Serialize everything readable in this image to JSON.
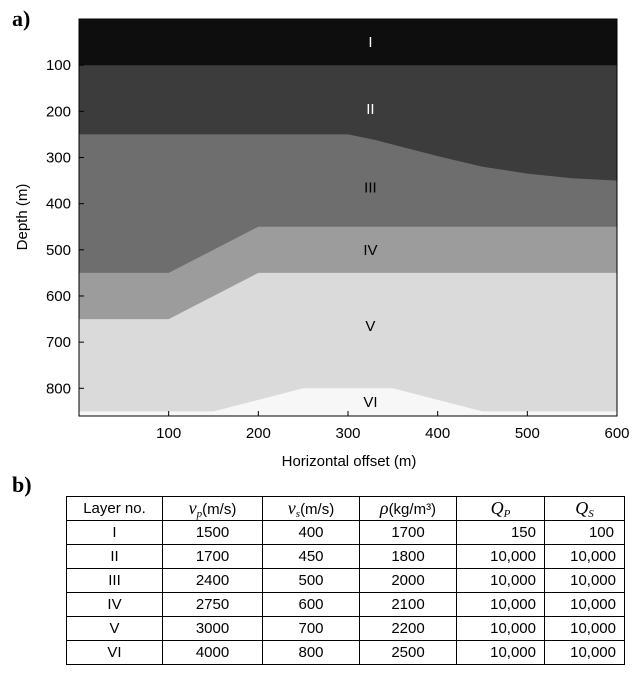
{
  "panel_a_label": "a)",
  "panel_b_label": "b)",
  "chart_data": {
    "type": "area",
    "xlabel": "Horizontal offset (m)",
    "ylabel": "Depth (m)",
    "xlim": [
      0,
      600
    ],
    "ylim": [
      860,
      0
    ],
    "y_inverted": true,
    "grid": false,
    "xticks": [
      "100",
      "200",
      "300",
      "400",
      "500",
      "600"
    ],
    "yticks": [
      "100",
      "200",
      "300",
      "400",
      "500",
      "600",
      "700",
      "800"
    ],
    "layers": [
      {
        "label": "I",
        "color": "#0e0e0e",
        "label_pos": [
          325,
          50
        ],
        "top": [
          [
            0,
            0
          ],
          [
            600,
            0
          ]
        ]
      },
      {
        "label": "II",
        "color": "#3c3c3c",
        "label_pos": [
          325,
          195
        ],
        "top": [
          [
            0,
            100
          ],
          [
            600,
            100
          ]
        ]
      },
      {
        "label": "III",
        "color": "#6e6e6e",
        "label_pos": [
          325,
          365
        ],
        "top": [
          [
            0,
            250
          ],
          [
            300,
            250
          ],
          [
            330,
            262
          ],
          [
            400,
            297
          ],
          [
            450,
            320
          ],
          [
            500,
            335
          ],
          [
            550,
            345
          ],
          [
            600,
            350
          ]
        ]
      },
      {
        "label": "IV",
        "color": "#9c9c9c",
        "label_pos": [
          325,
          500
        ],
        "top": [
          [
            0,
            550
          ],
          [
            100,
            550
          ],
          [
            200,
            450
          ],
          [
            600,
            450
          ]
        ]
      },
      {
        "label": "V",
        "color": "#dadada",
        "label_pos": [
          325,
          665
        ],
        "top": [
          [
            0,
            650
          ],
          [
            100,
            650
          ],
          [
            200,
            550
          ],
          [
            600,
            550
          ]
        ]
      },
      {
        "label": "VI",
        "color": "#f7f7f7",
        "label_pos": [
          325,
          830
        ],
        "top": [
          [
            0,
            850
          ],
          [
            150,
            850
          ],
          [
            250,
            800
          ],
          [
            350,
            800
          ],
          [
            450,
            850
          ],
          [
            600,
            850
          ]
        ]
      }
    ]
  },
  "table": {
    "headers": {
      "layer": "Layer no.",
      "vp_sym": "v",
      "vp_sub": "p",
      "vp_unit": "(m/s)",
      "vs_sym": "v",
      "vs_sub": "s",
      "vs_unit": "(m/s)",
      "rho_sym": "ρ",
      "rho_unit": "(kg/m³)",
      "qp_sym": "Q",
      "qp_sub": "P",
      "qs_sym": "Q",
      "qs_sub": "S"
    },
    "rows": [
      {
        "layer": "I",
        "vp": "1500",
        "vs": "400",
        "rho": "1700",
        "qp": "150",
        "qs": "100"
      },
      {
        "layer": "II",
        "vp": "1700",
        "vs": "450",
        "rho": "1800",
        "qp": "10,000",
        "qs": "10,000"
      },
      {
        "layer": "III",
        "vp": "2400",
        "vs": "500",
        "rho": "2000",
        "qp": "10,000",
        "qs": "10,000"
      },
      {
        "layer": "IV",
        "vp": "2750",
        "vs": "600",
        "rho": "2100",
        "qp": "10,000",
        "qs": "10,000"
      },
      {
        "layer": "V",
        "vp": "3000",
        "vs": "700",
        "rho": "2200",
        "qp": "10,000",
        "qs": "10,000"
      },
      {
        "layer": "VI",
        "vp": "4000",
        "vs": "800",
        "rho": "2500",
        "qp": "10,000",
        "qs": "10,000"
      }
    ]
  }
}
